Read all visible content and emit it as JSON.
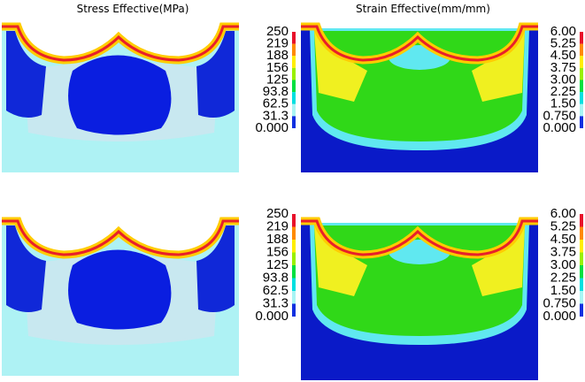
{
  "titles": [
    "Stress Effective(MPa)",
    "Strain Effective(mm/mm)"
  ],
  "colorbars": {
    "stress": [
      "250",
      "219",
      "188",
      "156",
      "125",
      "93.8",
      "62.5",
      "31.3",
      "0.000"
    ],
    "strain": [
      "6.00",
      "5.25",
      "4.50",
      "3.75",
      "3.00",
      "2.25",
      "1.50",
      "0.750",
      "0.000"
    ]
  }
}
